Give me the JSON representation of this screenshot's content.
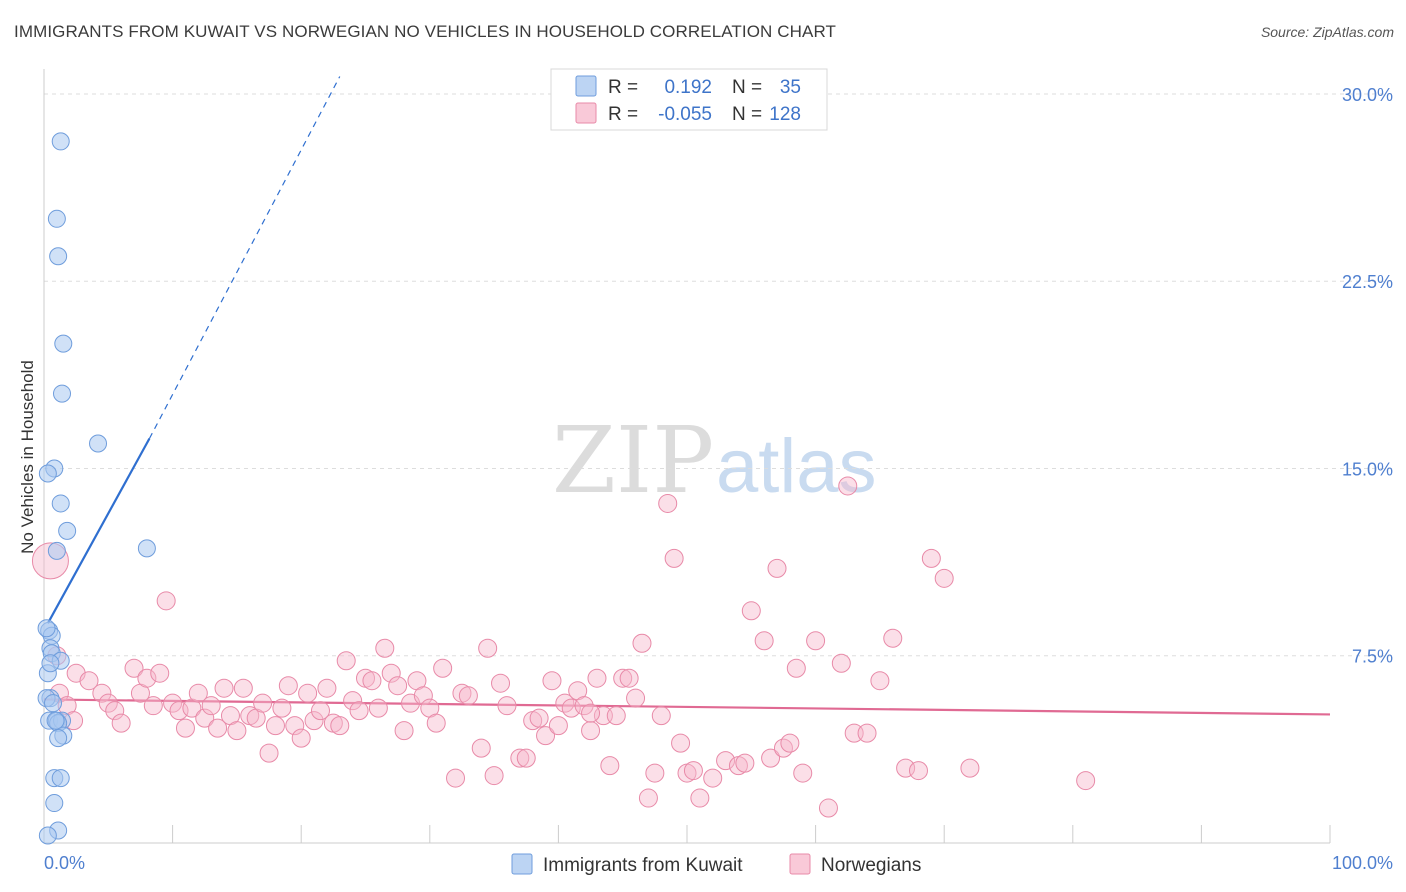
{
  "header": {
    "title": "IMMIGRANTS FROM KUWAIT VS NORWEGIAN NO VEHICLES IN HOUSEHOLD CORRELATION CHART",
    "source": "Source: ZipAtlas.com"
  },
  "watermark": {
    "zip": "ZIP",
    "atlas": "atlas"
  },
  "colors": {
    "blue_fill": "#a9c8f0",
    "blue_stroke": "#6f9ddc",
    "blue_line": "#2f6fd0",
    "pink_fill": "#f6b9cc",
    "pink_stroke": "#e88aa8",
    "pink_line": "#e06a93",
    "grid": "#dddddd",
    "tick_text": "#4f7fcf"
  },
  "legend": {
    "rows": [
      {
        "r_label": "R =",
        "r_value": "0.192",
        "n_label": "N =",
        "n_value": "35",
        "series": "blue"
      },
      {
        "r_label": "R =",
        "r_value": "-0.055",
        "n_label": "N =",
        "n_value": "128",
        "series": "pink"
      }
    ]
  },
  "chart_data": {
    "type": "scatter",
    "title": "IMMIGRANTS FROM KUWAIT VS NORWEGIAN NO VEHICLES IN HOUSEHOLD CORRELATION CHART",
    "xlabel": "",
    "ylabel": "No Vehicles in Household",
    "xlim": [
      0,
      100
    ],
    "ylim": [
      0,
      31
    ],
    "x_ticks": [
      "0.0%",
      "100.0%"
    ],
    "y_ticks": [
      {
        "value": 7.5,
        "label": "7.5%"
      },
      {
        "value": 15.0,
        "label": "15.0%"
      },
      {
        "value": 22.5,
        "label": "22.5%"
      },
      {
        "value": 30.0,
        "label": "30.0%"
      }
    ],
    "series": [
      {
        "name": "Immigrants from Kuwait",
        "color": "blue",
        "points": [
          [
            1.3,
            28.1
          ],
          [
            1.0,
            25.0
          ],
          [
            1.1,
            23.5
          ],
          [
            1.5,
            20.0
          ],
          [
            1.4,
            18.0
          ],
          [
            4.2,
            16.0
          ],
          [
            0.8,
            15.0
          ],
          [
            0.3,
            14.8
          ],
          [
            1.3,
            13.6
          ],
          [
            1.8,
            12.5
          ],
          [
            1.0,
            11.7
          ],
          [
            8.0,
            11.8
          ],
          [
            0.4,
            8.5
          ],
          [
            0.6,
            8.3
          ],
          [
            0.5,
            7.8
          ],
          [
            0.6,
            7.6
          ],
          [
            1.3,
            7.3
          ],
          [
            0.3,
            6.8
          ],
          [
            0.5,
            5.8
          ],
          [
            0.2,
            5.8
          ],
          [
            0.4,
            4.9
          ],
          [
            1.0,
            4.9
          ],
          [
            1.4,
            4.9
          ],
          [
            1.1,
            4.8
          ],
          [
            1.5,
            4.3
          ],
          [
            1.1,
            4.2
          ],
          [
            0.8,
            2.6
          ],
          [
            1.3,
            2.6
          ],
          [
            0.8,
            1.6
          ],
          [
            1.1,
            0.5
          ],
          [
            0.3,
            0.3
          ],
          [
            0.9,
            4.9
          ],
          [
            0.5,
            7.2
          ],
          [
            0.7,
            5.6
          ],
          [
            0.2,
            8.6
          ]
        ],
        "trend": {
          "x0": 0.3,
          "y0": 8.8,
          "x1": 8.2,
          "y1": 16.2,
          "dash_to_x": 23.0,
          "dash_to_y": 30.7
        }
      },
      {
        "name": "Norwegians",
        "color": "pink",
        "points": [
          [
            0.5,
            11.3
          ],
          [
            1.2,
            6.0
          ],
          [
            1.0,
            7.5
          ],
          [
            1.8,
            5.5
          ],
          [
            2.5,
            6.8
          ],
          [
            2.3,
            4.9
          ],
          [
            3.5,
            6.5
          ],
          [
            4.5,
            6.0
          ],
          [
            5.0,
            5.6
          ],
          [
            5.5,
            5.3
          ],
          [
            6.0,
            4.8
          ],
          [
            7.0,
            7.0
          ],
          [
            7.5,
            6.0
          ],
          [
            8.0,
            6.6
          ],
          [
            8.5,
            5.5
          ],
          [
            9.0,
            6.8
          ],
          [
            9.5,
            9.7
          ],
          [
            10.0,
            5.6
          ],
          [
            10.5,
            5.3
          ],
          [
            11.0,
            4.6
          ],
          [
            11.5,
            5.4
          ],
          [
            12.0,
            6.0
          ],
          [
            12.5,
            5.0
          ],
          [
            13.0,
            5.5
          ],
          [
            13.5,
            4.6
          ],
          [
            14.0,
            6.2
          ],
          [
            14.5,
            5.1
          ],
          [
            15.0,
            4.5
          ],
          [
            15.5,
            6.2
          ],
          [
            16.0,
            5.1
          ],
          [
            16.5,
            5.0
          ],
          [
            17.0,
            5.6
          ],
          [
            17.5,
            3.6
          ],
          [
            18.0,
            4.7
          ],
          [
            18.5,
            5.4
          ],
          [
            19.0,
            6.3
          ],
          [
            19.5,
            4.7
          ],
          [
            20.0,
            4.2
          ],
          [
            20.5,
            6.0
          ],
          [
            21.0,
            4.9
          ],
          [
            21.5,
            5.3
          ],
          [
            22.0,
            6.2
          ],
          [
            22.5,
            4.8
          ],
          [
            23.0,
            4.7
          ],
          [
            23.5,
            7.3
          ],
          [
            24.0,
            5.7
          ],
          [
            24.5,
            5.3
          ],
          [
            25.0,
            6.6
          ],
          [
            25.5,
            6.5
          ],
          [
            26.0,
            5.4
          ],
          [
            26.5,
            7.8
          ],
          [
            27.0,
            6.8
          ],
          [
            27.5,
            6.3
          ],
          [
            28.0,
            4.5
          ],
          [
            28.5,
            5.6
          ],
          [
            29.0,
            6.5
          ],
          [
            29.5,
            5.9
          ],
          [
            30.0,
            5.4
          ],
          [
            30.5,
            4.8
          ],
          [
            31.0,
            7.0
          ],
          [
            32.0,
            2.6
          ],
          [
            32.5,
            6.0
          ],
          [
            33.0,
            5.9
          ],
          [
            34.0,
            3.8
          ],
          [
            34.5,
            7.8
          ],
          [
            35.0,
            2.7
          ],
          [
            35.5,
            6.4
          ],
          [
            36.0,
            5.5
          ],
          [
            37.0,
            3.4
          ],
          [
            37.5,
            3.4
          ],
          [
            38.0,
            4.9
          ],
          [
            38.5,
            5.0
          ],
          [
            39.0,
            4.3
          ],
          [
            39.5,
            6.5
          ],
          [
            40.0,
            4.7
          ],
          [
            40.5,
            5.6
          ],
          [
            41.0,
            5.4
          ],
          [
            41.5,
            6.1
          ],
          [
            42.0,
            5.5
          ],
          [
            42.5,
            4.5
          ],
          [
            43.0,
            6.6
          ],
          [
            43.5,
            5.1
          ],
          [
            44.0,
            3.1
          ],
          [
            44.5,
            5.1
          ],
          [
            45.0,
            6.6
          ],
          [
            45.5,
            6.6
          ],
          [
            46.0,
            5.8
          ],
          [
            46.5,
            8.0
          ],
          [
            47.0,
            1.8
          ],
          [
            47.5,
            2.8
          ],
          [
            48.0,
            5.1
          ],
          [
            48.5,
            13.6
          ],
          [
            49.0,
            11.4
          ],
          [
            49.5,
            4.0
          ],
          [
            50.0,
            2.8
          ],
          [
            50.5,
            2.9
          ],
          [
            51.0,
            1.8
          ],
          [
            52.0,
            2.6
          ],
          [
            53.0,
            3.3
          ],
          [
            54.0,
            3.1
          ],
          [
            54.5,
            3.2
          ],
          [
            55.0,
            9.3
          ],
          [
            56.0,
            8.1
          ],
          [
            56.5,
            3.4
          ],
          [
            57.0,
            11.0
          ],
          [
            57.5,
            3.8
          ],
          [
            58.0,
            4.0
          ],
          [
            58.5,
            7.0
          ],
          [
            59.0,
            2.8
          ],
          [
            60.0,
            8.1
          ],
          [
            61.0,
            1.4
          ],
          [
            62.0,
            7.2
          ],
          [
            62.5,
            14.3
          ],
          [
            63.0,
            4.4
          ],
          [
            64.0,
            4.4
          ],
          [
            65.0,
            6.5
          ],
          [
            66.0,
            8.2
          ],
          [
            67.0,
            3.0
          ],
          [
            68.0,
            2.9
          ],
          [
            69.0,
            11.4
          ],
          [
            70.0,
            10.6
          ],
          [
            72.0,
            3.0
          ],
          [
            81.0,
            2.5
          ],
          [
            42.5,
            5.2
          ]
        ],
        "trend": {
          "x0": 0.0,
          "y0": 5.75,
          "x1": 100.0,
          "y1": 5.15
        }
      }
    ]
  },
  "bottom_legend": {
    "items": [
      {
        "label": "Immigrants from Kuwait",
        "color": "blue"
      },
      {
        "label": "Norwegians",
        "color": "pink"
      }
    ]
  }
}
